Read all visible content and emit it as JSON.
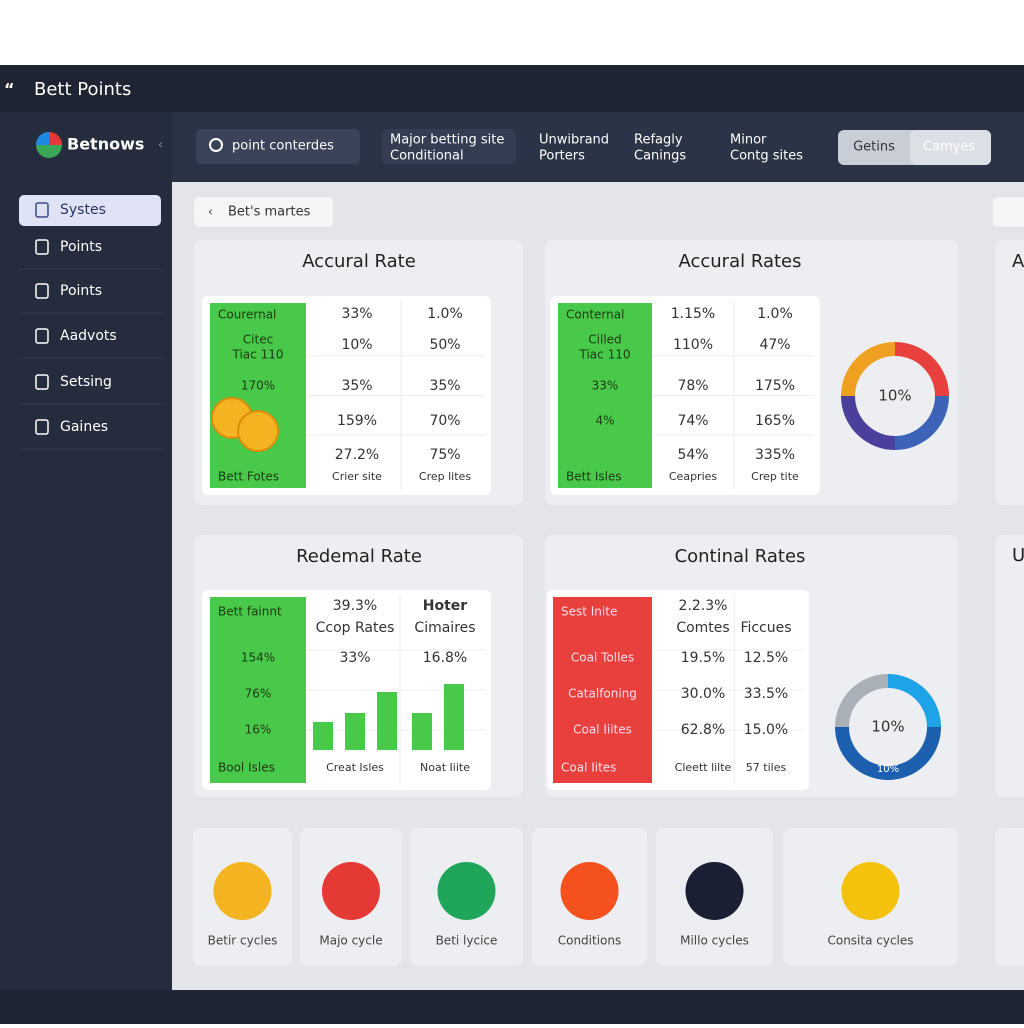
{
  "window": {
    "title": "Bett Points"
  },
  "sidebar": {
    "brand": "Betnows",
    "nav": [
      "Systes",
      "Points",
      "Points",
      "Aadvots",
      "Setsing",
      "Gaines"
    ]
  },
  "toolbar": {
    "search": "point conterdes",
    "filters": [
      [
        "Major betting site",
        "Conditional"
      ],
      [
        "Unwibrand",
        "Porters"
      ],
      [
        "Refagly",
        "Canings"
      ],
      [
        "Minor",
        "Contg sites"
      ]
    ],
    "buttons": [
      "Getins",
      "Camyes"
    ]
  },
  "breadcrumb": "Bet's martes",
  "cards": [
    {
      "title": "Accural Rate",
      "left": [
        "Courernal",
        "Citec",
        "Tiac 110",
        "170%",
        "Bett Fotes"
      ],
      "middle": [
        "33%",
        "10%",
        "35%",
        "159%",
        "27.2%",
        "Crier site"
      ],
      "right": [
        "1.0%",
        "50%",
        "35%",
        "70%",
        "75%",
        "Crep lites"
      ]
    },
    {
      "title": "Accural Rates",
      "left": [
        "Conternal",
        "Cilled",
        "Tiac 110",
        "33%",
        "4%",
        "Bett Isles"
      ],
      "middle": [
        "1.15%",
        "110%",
        "78%",
        "74%",
        "54%",
        "Ceapries"
      ],
      "right": [
        "1.0%",
        "47%",
        "175%",
        "165%",
        "335%",
        "Crep tite"
      ],
      "donut_label": "10%"
    },
    {
      "title": "Redemal Rate",
      "left": [
        "Bett fainnt",
        "154%",
        "76%",
        "16%",
        "Bool Isles"
      ],
      "middle": [
        "39.3%",
        "Ccop Rates",
        "33%",
        "Creat Isles"
      ],
      "right": [
        "Hoter",
        "Cimaires",
        "16.8%",
        "Noat Iiite"
      ]
    },
    {
      "title": "Continal Rates",
      "left": [
        "Sest Inite",
        "Coal Tolles",
        "Catalfoning",
        "Coal Iiites",
        "Coal Iites"
      ],
      "middle": [
        "2.2.3%",
        "Comtes",
        "19.5%",
        "30.0%",
        "62.8%",
        "Cleett lilte"
      ],
      "right": [
        "Ficcues",
        "12.5%",
        "33.5%",
        "15.0%",
        "57 tiles"
      ],
      "donut_label": "10%",
      "donut_sublabel": "10%"
    }
  ],
  "tiles": [
    "Betir cycles",
    "Majo cycle",
    "Beti lycice",
    "Conditions",
    "Millo cycles",
    "Consita cycles"
  ],
  "peek": [
    "A",
    "U"
  ]
}
